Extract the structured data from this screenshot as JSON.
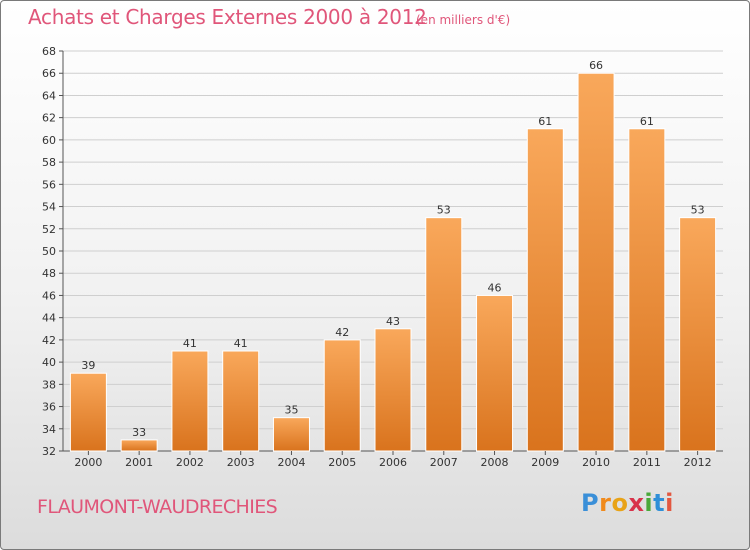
{
  "title": "Achats et Charges Externes 2000 à 2012",
  "unit_note": "(en milliers d'€)",
  "location": "FLAUMONT-WAUDRECHIES",
  "logo": {
    "text": "Proxiti",
    "letter_colors": [
      "#3a8fd8",
      "#f08a1c",
      "#e8a317",
      "#d8324a",
      "#4aa83a",
      "#2f8fd8",
      "#e3573f"
    ]
  },
  "colors": {
    "title": "#e0567a",
    "bar_top": "#f9a85b",
    "bar_bottom": "#d9731d",
    "bar_edge": "#ffffff",
    "grid": "#cfcfcf"
  },
  "chart_data": {
    "type": "bar",
    "categories": [
      "2000",
      "2001",
      "2002",
      "2003",
      "2004",
      "2005",
      "2006",
      "2007",
      "2008",
      "2009",
      "2010",
      "2011",
      "2012"
    ],
    "values": [
      39,
      33,
      41,
      41,
      35,
      42,
      43,
      53,
      46,
      61,
      66,
      61,
      53
    ],
    "data_labels": [
      "39",
      "33",
      "41",
      "41",
      "35",
      "42",
      "43",
      "53",
      "46",
      "61",
      "66",
      "61",
      "53"
    ],
    "ylim": [
      32,
      68
    ],
    "yticks": [
      32,
      34,
      36,
      38,
      40,
      42,
      44,
      46,
      48,
      50,
      52,
      54,
      56,
      58,
      60,
      62,
      64,
      66,
      68
    ],
    "grid": true
  }
}
